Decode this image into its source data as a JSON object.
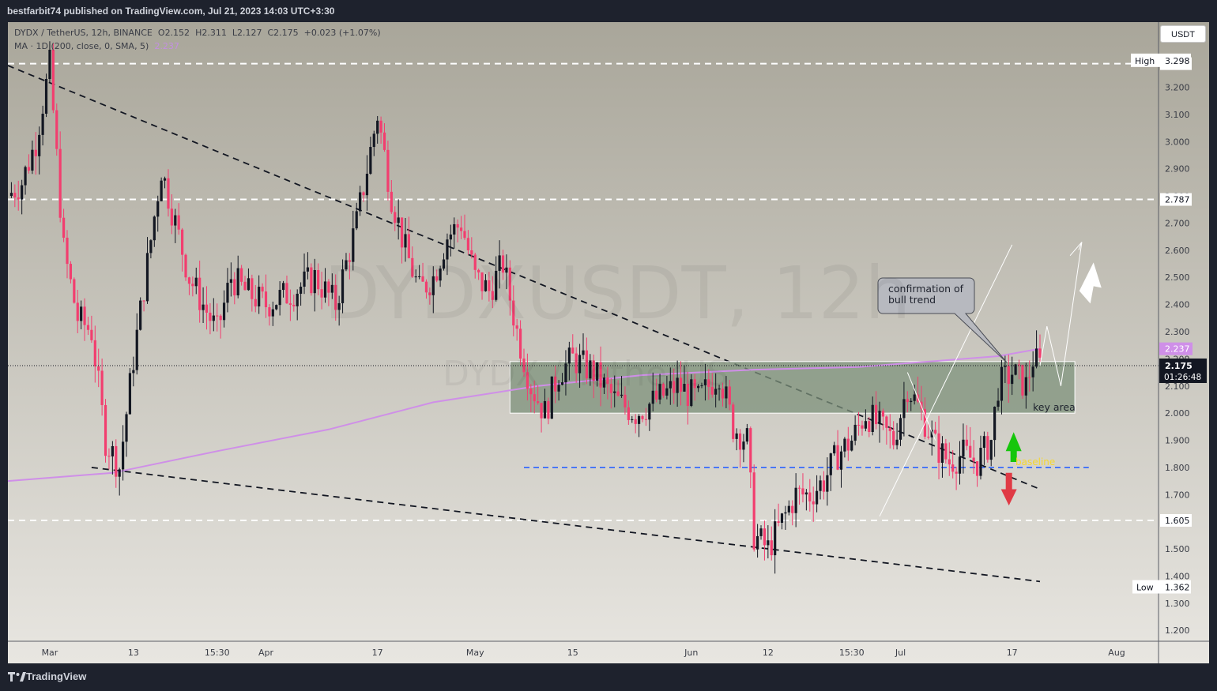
{
  "header": {
    "publisher": "bestfarbit74 published on TradingView.com, Jul 21, 2023 14:03 UTC+3:30"
  },
  "legend": {
    "symbol": "DYDX / TetherUS, 12h, BINANCE",
    "o_label": "O",
    "open": "2.152",
    "h_label": "H",
    "high": "2.311",
    "l_label": "L",
    "low": "2.127",
    "c_label": "C",
    "close": "2.175",
    "change": "+0.023 (+1.07%)",
    "ma_label": "MA · 1D (200, close, 0, SMA, 5)",
    "ma_value": "2.237"
  },
  "watermark": {
    "main": "DYDXUSDT, 12h",
    "sub": "DYDX / TetherUS"
  },
  "currency_button": "USDT",
  "annotations": {
    "callout": "confirmation of\nbull trend",
    "key_area": "key area",
    "baseline": "baseline"
  },
  "price_axis": {
    "high_label": "High",
    "high_value": "3.298",
    "low_label": "Low",
    "low_value": "1.362",
    "current_price": "2.175",
    "countdown": "01:26:48",
    "ma_tag": "2.237",
    "level_tags": [
      "3.287",
      "2.787",
      "1.605"
    ]
  },
  "footer": {
    "brand": "TradingView"
  },
  "colors": {
    "bull": "#131722",
    "bear": "#f23e6f",
    "ma": "#cf8fe8",
    "baseline": "#2962ff",
    "zone": "#7e927b",
    "bg_top": "#a9a69a",
    "bg_bottom": "#e8e6e1"
  },
  "chart_data": {
    "type": "candlestick",
    "title": "DYDX / TetherUS, 12h, BINANCE",
    "y_ticks": [
      1.2,
      1.3,
      1.4,
      1.5,
      1.6,
      1.7,
      1.8,
      1.9,
      2.0,
      2.1,
      2.2,
      2.3,
      2.4,
      2.5,
      2.6,
      2.7,
      2.8,
      2.9,
      3.0,
      3.1,
      3.2,
      3.3,
      3.4
    ],
    "ylim": [
      1.16,
      3.44
    ],
    "x_ticks": [
      "Mar",
      "13",
      "15:30",
      "Apr",
      "17",
      "May",
      "15",
      "Jun",
      "12",
      "15:30",
      "Jul",
      "17",
      "Aug"
    ],
    "x_tick_dates": [
      "2023-03-01",
      "2023-03-13",
      "2023-03-25",
      "2023-04-01",
      "2023-04-17",
      "2023-05-01",
      "2023-05-15",
      "2023-06-01",
      "2023-06-12",
      "2023-06-24",
      "2023-07-01",
      "2023-07-17",
      "2023-08-01"
    ],
    "horizontal_levels": [
      3.287,
      2.787,
      1.605
    ],
    "baseline_level": 1.8,
    "key_area": {
      "from": "2023-05-06",
      "to": "2023-07-26",
      "bottom": 2.0,
      "top": 2.19
    },
    "trendlines": [
      {
        "from": [
          "2023-02-23",
          3.28
        ],
        "to": [
          "2023-07-21",
          1.72
        ]
      },
      {
        "from": [
          "2023-03-07",
          1.8
        ],
        "to": [
          "2023-07-21",
          1.38
        ]
      }
    ],
    "ma_points": [
      [
        "2023-02-23",
        1.75
      ],
      [
        "2023-03-10",
        1.78
      ],
      [
        "2023-03-25",
        1.86
      ],
      [
        "2023-04-10",
        1.94
      ],
      [
        "2023-04-25",
        2.04
      ],
      [
        "2023-05-10",
        2.1
      ],
      [
        "2023-05-25",
        2.14
      ],
      [
        "2023-06-10",
        2.16
      ],
      [
        "2023-06-25",
        2.17
      ],
      [
        "2023-07-05",
        2.19
      ],
      [
        "2023-07-15",
        2.21
      ],
      [
        "2023-07-21",
        2.237
      ]
    ],
    "price_path": [
      [
        "2023-02-23",
        2.8
      ],
      [
        "2023-02-25",
        2.85
      ],
      [
        "2023-02-27",
        3.0
      ],
      [
        "2023-03-01",
        3.28
      ],
      [
        "2023-03-03",
        2.6
      ],
      [
        "2023-03-05",
        2.35
      ],
      [
        "2023-03-07",
        2.3
      ],
      [
        "2023-03-09",
        1.9
      ],
      [
        "2023-03-11",
        1.8
      ],
      [
        "2023-03-13",
        2.2
      ],
      [
        "2023-03-15",
        2.55
      ],
      [
        "2023-03-17",
        2.9
      ],
      [
        "2023-03-19",
        2.7
      ],
      [
        "2023-03-21",
        2.5
      ],
      [
        "2023-03-23",
        2.4
      ],
      [
        "2023-03-25",
        2.3
      ],
      [
        "2023-03-27",
        2.5
      ],
      [
        "2023-03-29",
        2.45
      ],
      [
        "2023-04-01",
        2.4
      ],
      [
        "2023-04-05",
        2.45
      ],
      [
        "2023-04-08",
        2.5
      ],
      [
        "2023-04-11",
        2.4
      ],
      [
        "2023-04-14",
        2.7
      ],
      [
        "2023-04-17",
        3.1
      ],
      [
        "2023-04-19",
        2.8
      ],
      [
        "2023-04-21",
        2.6
      ],
      [
        "2023-04-23",
        2.45
      ],
      [
        "2023-04-25",
        2.5
      ],
      [
        "2023-04-27",
        2.65
      ],
      [
        "2023-04-29",
        2.7
      ],
      [
        "2023-05-01",
        2.5
      ],
      [
        "2023-05-03",
        2.45
      ],
      [
        "2023-05-05",
        2.55
      ],
      [
        "2023-05-07",
        2.3
      ],
      [
        "2023-05-09",
        2.1
      ],
      [
        "2023-05-11",
        2.0
      ],
      [
        "2023-05-13",
        2.15
      ],
      [
        "2023-05-15",
        2.2
      ],
      [
        "2023-05-18",
        2.15
      ],
      [
        "2023-05-21",
        2.05
      ],
      [
        "2023-05-24",
        2.0
      ],
      [
        "2023-05-27",
        2.05
      ],
      [
        "2023-05-30",
        2.1
      ],
      [
        "2023-06-02",
        2.05
      ],
      [
        "2023-06-05",
        2.15
      ],
      [
        "2023-06-07",
        1.95
      ],
      [
        "2023-06-09",
        1.9
      ],
      [
        "2023-06-10",
        1.55
      ],
      [
        "2023-06-12",
        1.5
      ],
      [
        "2023-06-14",
        1.6
      ],
      [
        "2023-06-16",
        1.7
      ],
      [
        "2023-06-18",
        1.7
      ],
      [
        "2023-06-20",
        1.75
      ],
      [
        "2023-06-22",
        1.85
      ],
      [
        "2023-06-24",
        1.9
      ],
      [
        "2023-06-26",
        2.0
      ],
      [
        "2023-06-28",
        1.95
      ],
      [
        "2023-06-30",
        1.9
      ],
      [
        "2023-07-02",
        2.1
      ],
      [
        "2023-07-04",
        2.0
      ],
      [
        "2023-07-06",
        1.88
      ],
      [
        "2023-07-08",
        1.82
      ],
      [
        "2023-07-10",
        1.85
      ],
      [
        "2023-07-12",
        1.82
      ],
      [
        "2023-07-14",
        1.9
      ],
      [
        "2023-07-15",
        2.1
      ],
      [
        "2023-07-17",
        2.15
      ],
      [
        "2023-07-19",
        2.1
      ],
      [
        "2023-07-20",
        2.2
      ],
      [
        "2023-07-21",
        2.175
      ]
    ],
    "projection_path": [
      [
        "2023-07-21",
        2.175
      ],
      [
        "2023-07-22",
        2.32
      ],
      [
        "2023-07-24",
        2.1
      ],
      [
        "2023-07-27",
        2.63
      ]
    ]
  }
}
